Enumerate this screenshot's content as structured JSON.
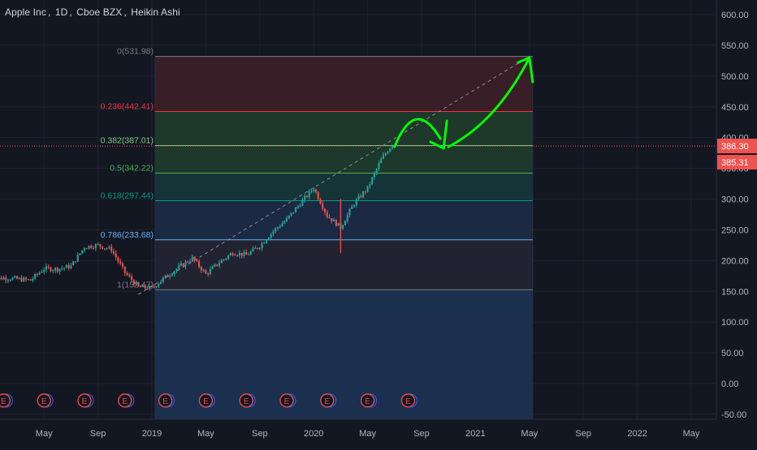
{
  "header": {
    "symbol": "Apple Inc",
    "interval": "1D",
    "exchange": "Cboe BZX",
    "chart_style": "Heikin Ashi"
  },
  "colors": {
    "background": "#131722",
    "grid": "#1e2230",
    "axis_text": "#b2b5be",
    "candle_up": "#26a69a",
    "candle_down": "#ef5350",
    "drawing_arrow": "#00ff00",
    "price_tag": "#ef5350",
    "earnings": "#e84a4a"
  },
  "chart_data": {
    "type": "candlestick",
    "title": "",
    "y_axis": {
      "position": "right",
      "ylim": [
        -55,
        610
      ],
      "ticks": [
        "600.00",
        "550.00",
        "500.00",
        "450.00",
        "400.00",
        "350.00",
        "300.00",
        "250.00",
        "200.00",
        "150.00",
        "100.00",
        "50.00",
        "0.00",
        "-50.00"
      ]
    },
    "x_axis": {
      "ticks": [
        "May",
        "Sep",
        "2019",
        "May",
        "Sep",
        "2020",
        "May",
        "Sep",
        "2021",
        "May",
        "Sep",
        "2022",
        "May"
      ]
    },
    "price_tags": [
      "386.30",
      "385.31"
    ],
    "price_line": 386.3,
    "fibonacci": [
      {
        "label": "0(531.98)",
        "level": "0",
        "price": 531.98,
        "color": "#787b86"
      },
      {
        "label": "0.236(442.41)",
        "level": "0.236",
        "price": 442.41,
        "color": "#f23645"
      },
      {
        "label": "0.382(387.01)",
        "level": "0.382",
        "price": 387.01,
        "color": "#81c784"
      },
      {
        "label": "0.5(342.22)",
        "level": "0.5",
        "price": 342.22,
        "color": "#4caf50"
      },
      {
        "label": "0.618(297.44)",
        "level": "0.618",
        "price": 297.44,
        "color": "#089981"
      },
      {
        "label": "0.786(233.68)",
        "level": "0.786",
        "price": 233.68,
        "color": "#64b5f6"
      },
      {
        "label": "1(152.47)",
        "level": "1",
        "price": 152.47,
        "color": "#787b86"
      }
    ],
    "fib_zone_fills": [
      "#3a1f27",
      "#1f3a2b",
      "#1c3b2c",
      "#14363a",
      "#1b2a46",
      "#232433",
      "#1b2f4e"
    ],
    "price_series": [
      {
        "date": "2018-01",
        "price": 168
      },
      {
        "date": "2018-02",
        "price": 172
      },
      {
        "date": "2018-03",
        "price": 170
      },
      {
        "date": "2018-04",
        "price": 168
      },
      {
        "date": "2018-05",
        "price": 187
      },
      {
        "date": "2018-06",
        "price": 186
      },
      {
        "date": "2018-07",
        "price": 191
      },
      {
        "date": "2018-08",
        "price": 222
      },
      {
        "date": "2018-09",
        "price": 225
      },
      {
        "date": "2018-10",
        "price": 218
      },
      {
        "date": "2018-11",
        "price": 180
      },
      {
        "date": "2018-12",
        "price": 157
      },
      {
        "date": "2019-01",
        "price": 155
      },
      {
        "date": "2019-02",
        "price": 173
      },
      {
        "date": "2019-03",
        "price": 189
      },
      {
        "date": "2019-04",
        "price": 204
      },
      {
        "date": "2019-05",
        "price": 178
      },
      {
        "date": "2019-06",
        "price": 197
      },
      {
        "date": "2019-07",
        "price": 213
      },
      {
        "date": "2019-08",
        "price": 209
      },
      {
        "date": "2019-09",
        "price": 224
      },
      {
        "date": "2019-10",
        "price": 248
      },
      {
        "date": "2019-11",
        "price": 267
      },
      {
        "date": "2019-12",
        "price": 293
      },
      {
        "date": "2020-01",
        "price": 318
      },
      {
        "date": "2020-02",
        "price": 273
      },
      {
        "date": "2020-03",
        "price": 254
      },
      {
        "date": "2020-04",
        "price": 293
      },
      {
        "date": "2020-05",
        "price": 318
      },
      {
        "date": "2020-06",
        "price": 364
      },
      {
        "date": "2020-07",
        "price": 395
      }
    ],
    "projection_dashed_line": [
      {
        "date": "2018-12",
        "price": 145
      },
      {
        "date": "2021-05",
        "price": 531.98
      }
    ],
    "projection_arrows": [
      {
        "date": "2020-07",
        "price": 385
      },
      {
        "date": "2020-09",
        "price": 415
      },
      {
        "date": "2020-11",
        "price": 385
      },
      {
        "date": "2021-02",
        "price": 440
      },
      {
        "date": "2021-05",
        "price": 530
      }
    ],
    "earnings_markers": {
      "label": "E",
      "dates": [
        "2018-02",
        "2018-05",
        "2018-08",
        "2018-11",
        "2019-02",
        "2019-05",
        "2019-08",
        "2019-11",
        "2020-02",
        "2020-05",
        "2020-08"
      ]
    }
  }
}
